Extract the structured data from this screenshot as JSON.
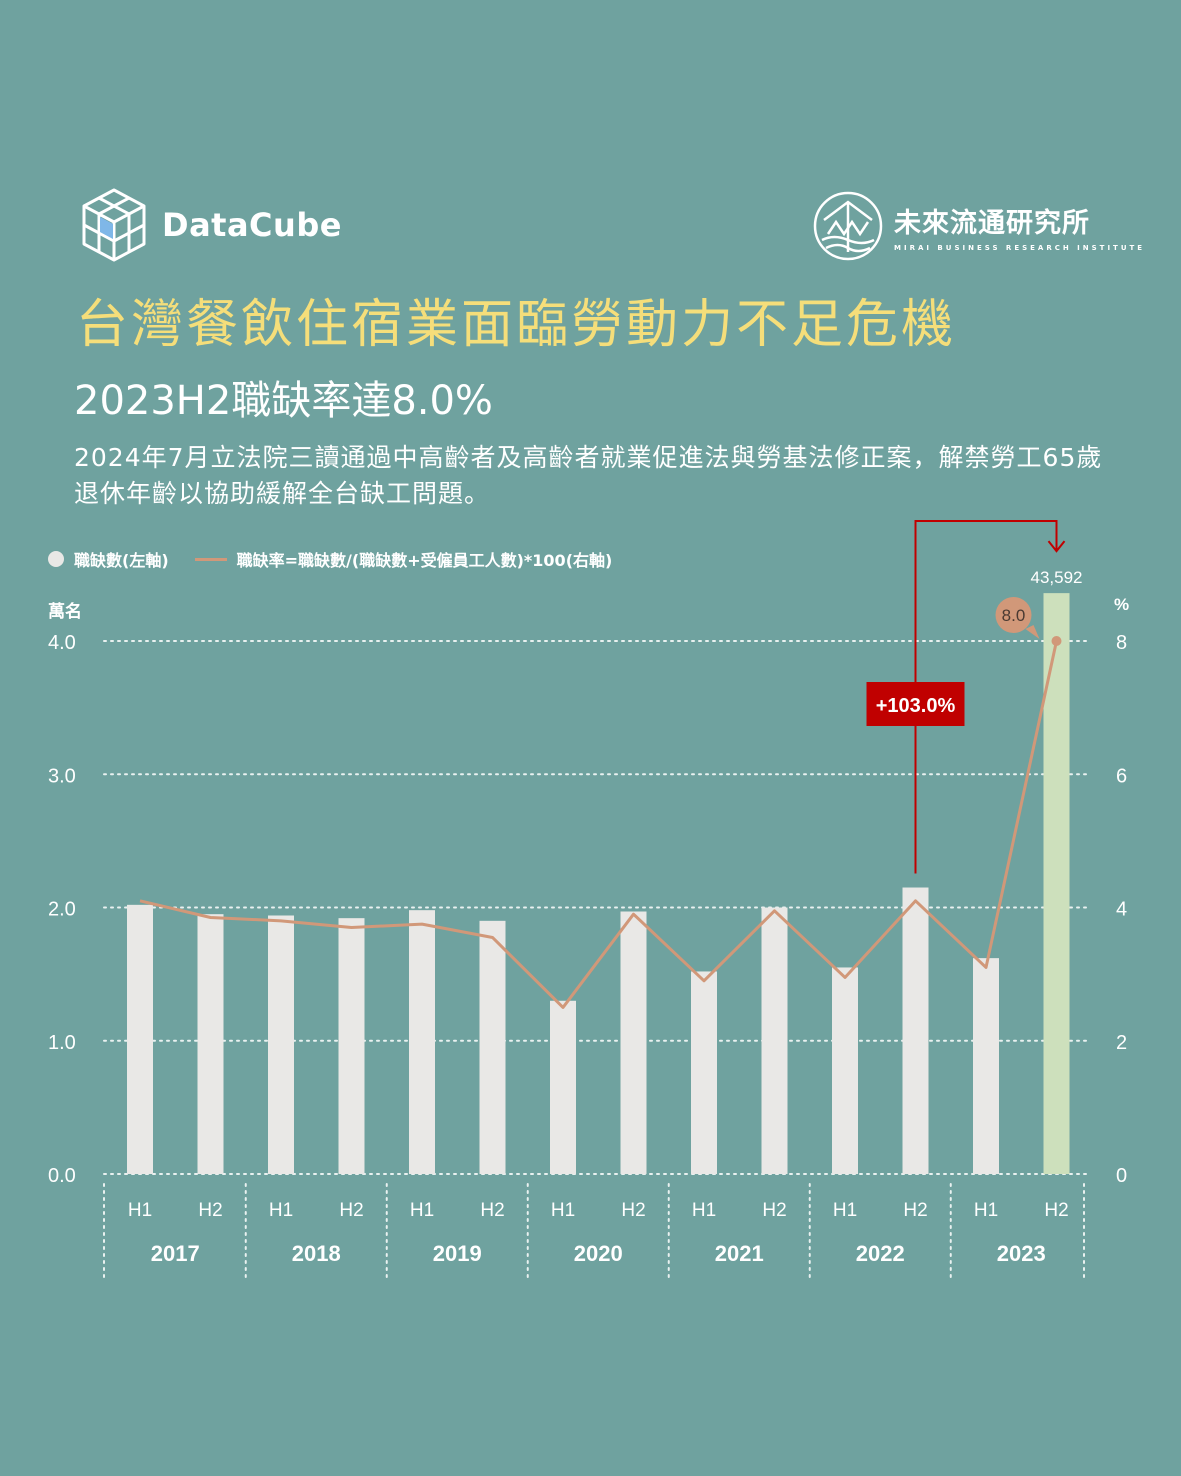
{
  "brand_left": {
    "name": "DataCube",
    "icon": "cube-logo-icon"
  },
  "brand_right": {
    "name": "未來流通研究所",
    "sub": "MIRAI BUSINESS RESEARCH INSTITUTE",
    "icon": "mirai-logo-icon"
  },
  "title": "台灣餐飲住宿業面臨勞動力不足危機",
  "subtitle": "2023H2職缺率達8.0%",
  "description": "2024年7月立法院三讀通過中高齡者及高齡者就業促進法與勞基法修正案，解禁勞工65歲退休年齡以協助緩解全台缺工問題。",
  "legend": {
    "bars": "職缺數(左軸)",
    "line": "職缺率=職缺數/(職缺數+受僱員工人數)*100(右軸)"
  },
  "colors": {
    "background": "#6fa29f",
    "title": "#f5de7a",
    "bar": "#e9e8e6",
    "bar_highlight": "#cde0bc",
    "line": "#d19879",
    "callout": "#c00000"
  },
  "chart_data": {
    "type": "bar+line",
    "left_axis_unit": "萬名",
    "right_axis_unit": "%",
    "left_ticks": [
      "0.0",
      "1.0",
      "2.0",
      "3.0",
      "4.0"
    ],
    "right_ticks": [
      "0",
      "2",
      "4",
      "6",
      "8"
    ],
    "ylim_left": [
      0,
      4.0
    ],
    "ylim_right": [
      0,
      8
    ],
    "halves": [
      "H1",
      "H2",
      "H1",
      "H2",
      "H1",
      "H2",
      "H1",
      "H2",
      "H1",
      "H2",
      "H1",
      "H2",
      "H1",
      "H2"
    ],
    "years": [
      "2017",
      "2018",
      "2019",
      "2020",
      "2021",
      "2022",
      "2023"
    ],
    "series": [
      {
        "name": "職缺數(左軸)",
        "values": [
          2.02,
          1.95,
          1.94,
          1.92,
          1.98,
          1.9,
          1.3,
          1.97,
          1.52,
          2.0,
          1.55,
          2.15,
          1.62,
          4.3592
        ]
      },
      {
        "name": "職缺率=職缺數/(職缺數+受僱員工人數)*100(右軸)",
        "values": [
          4.1,
          3.85,
          3.8,
          3.7,
          3.75,
          3.55,
          2.5,
          3.9,
          2.9,
          3.95,
          2.95,
          4.1,
          3.1,
          8.0
        ]
      }
    ],
    "labels": {
      "last_bar": "43,592",
      "last_point": "8.0",
      "growth": "+103.0%"
    },
    "grid": "dotted"
  }
}
